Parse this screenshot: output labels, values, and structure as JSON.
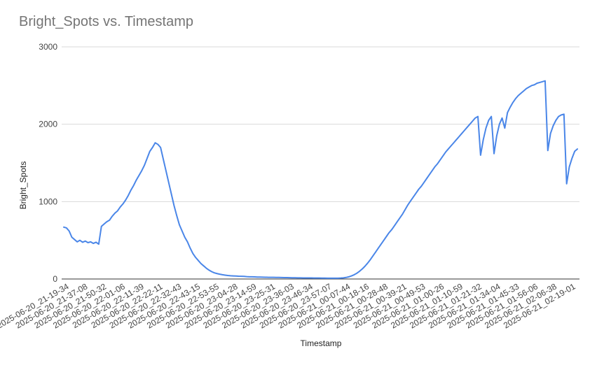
{
  "chart_data": {
    "type": "line",
    "title": "Bright_Spots vs. Timestamp",
    "xlabel": "Timestamp",
    "ylabel": "Bright_Spots",
    "ylim": [
      0,
      3000
    ],
    "yticks": [
      0,
      1000,
      2000,
      3000
    ],
    "grid": true,
    "legend": "none",
    "line_color": "#4a86e8",
    "x_tick_labels": [
      "2025-06-20_21-19-34",
      "2025-06-20_21-37-08",
      "2025-06-20_21-50-32",
      "2025-06-20_22-01-06",
      "2025-06-20_22-11-39",
      "2025-06-20_22-22-11",
      "2025-06-20_22-32-43",
      "2025-06-20_22-43-15",
      "2025-06-20_22-53-55",
      "2025-06-20_23-04-28",
      "2025-06-20_23-14-59",
      "2025-06-20_23-25-31",
      "2025-06-20_23-36-03",
      "2025-06-20_23-46-34",
      "2025-06-20_23-57-07",
      "2025-06-21_00-07-44",
      "2025-06-21_00-18-16",
      "2025-06-21_00-28-48",
      "2025-06-21_00-39-21",
      "2025-06-21_00-49-53",
      "2025-06-21_01-00-26",
      "2025-06-21_01-10-59",
      "2025-06-21_01-21-32",
      "2025-06-21_01-34-04",
      "2025-06-21_01-45-33",
      "2025-06-21_01-56-06",
      "2025-06-21_02-06-38",
      "2025-06-21_02-19-01"
    ],
    "series": [
      {
        "values": [
          670,
          660,
          620,
          540,
          510,
          480,
          500,
          475,
          490,
          470,
          480,
          460,
          475,
          450,
          680,
          710,
          740,
          760,
          810,
          850,
          880,
          930,
          970,
          1020,
          1080,
          1150,
          1210,
          1280,
          1340,
          1400,
          1470,
          1560,
          1650,
          1700,
          1760,
          1740,
          1700,
          1550,
          1400,
          1250,
          1100,
          950,
          820,
          700,
          620,
          540,
          480,
          400,
          330,
          280,
          240,
          200,
          170,
          140,
          115,
          95,
          80,
          70,
          62,
          55,
          50,
          45,
          42,
          40,
          38,
          36,
          35,
          34,
          30,
          28,
          28,
          27,
          25,
          25,
          24,
          23,
          22,
          22,
          21,
          20,
          20,
          19,
          18,
          18,
          17,
          16,
          16,
          15,
          15,
          14,
          14,
          13,
          13,
          12,
          12,
          12,
          11,
          11,
          10,
          10,
          10,
          10,
          10,
          12,
          15,
          20,
          28,
          40,
          55,
          75,
          100,
          130,
          165,
          205,
          250,
          300,
          350,
          400,
          450,
          500,
          550,
          600,
          640,
          690,
          740,
          790,
          840,
          900,
          960,
          1010,
          1060,
          1110,
          1160,
          1200,
          1250,
          1300,
          1350,
          1400,
          1450,
          1490,
          1540,
          1590,
          1640,
          1680,
          1720,
          1760,
          1800,
          1840,
          1880,
          1920,
          1960,
          2000,
          2040,
          2080,
          2100,
          1600,
          1800,
          1950,
          2050,
          2100,
          1620,
          1850,
          2000,
          2080,
          1950,
          2150,
          2220,
          2280,
          2330,
          2370,
          2400,
          2430,
          2460,
          2480,
          2500,
          2510,
          2530,
          2540,
          2550,
          2560,
          1660,
          1880,
          1980,
          2050,
          2100,
          2120,
          2130,
          1230,
          1450,
          1560,
          1650,
          1680
        ]
      }
    ]
  }
}
